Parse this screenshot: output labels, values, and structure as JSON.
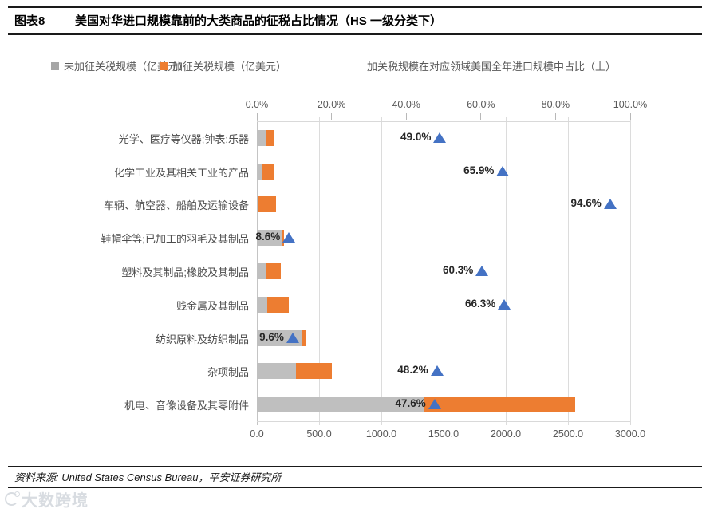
{
  "header": {
    "tag": "图表8",
    "title": "美国对华进口规模靠前的大类商品的征税占比情况（HS 一级分类下）"
  },
  "legend": {
    "untaxed_label": "未加征关税规模（亿美元）",
    "taxed_label": "加征关税规模（亿美元）",
    "note": "加关税规模在对应领域美国全年进口规模中占比（上）"
  },
  "colors": {
    "untaxed": "#BFBFBF",
    "taxed": "#ED7D31",
    "marker": "#4472C4",
    "legend_gray": "#A6A6A6"
  },
  "chart_data": {
    "type": "bar",
    "orientation": "horizontal",
    "stacked": true,
    "grid": "vertical",
    "categories": [
      "光学、医疗等仪器;钟表;乐器",
      "化学工业及其相关工业的产品",
      "车辆、航空器、船舶及运输设备",
      "鞋帽伞等;已加工的羽毛及其制品",
      "塑料及其制品;橡胶及其制品",
      "贱金属及其制品",
      "纺织原料及纺织制品",
      "杂项制品",
      "机电、音像设备及其零附件"
    ],
    "series": [
      {
        "name": "未加征关税规模（亿美元）",
        "color": "#BFBFBF",
        "values": [
          70,
          48,
          8,
          200,
          77,
          86,
          357,
          312,
          1340
        ]
      },
      {
        "name": "加征关税规模（亿美元）",
        "color": "#ED7D31",
        "values": [
          67,
          93,
          143,
          19,
          117,
          169,
          38,
          290,
          1217
        ]
      }
    ],
    "marker_series": {
      "name": "加关税规模在对应领域美国全年进口规模中占比（上）",
      "axis": "top",
      "values": [
        49.0,
        65.9,
        94.6,
        8.6,
        60.3,
        66.3,
        9.6,
        48.2,
        47.6
      ],
      "labels": [
        "49.0%",
        "65.9%",
        "94.6%",
        "8.6%",
        "60.3%",
        "66.3%",
        "9.6%",
        "48.2%",
        "47.6%"
      ]
    },
    "x_axis_bottom": {
      "range": [
        0,
        3000
      ],
      "ticks": [
        "0.0",
        "500.0",
        "1000.0",
        "1500.0",
        "2000.0",
        "2500.0",
        "3000.0"
      ]
    },
    "x_axis_top": {
      "range": [
        0,
        100
      ],
      "ticks": [
        "0.0%",
        "20.0%",
        "40.0%",
        "60.0%",
        "80.0%",
        "100.0%"
      ]
    }
  },
  "footer": {
    "source": "资料来源: United States Census Bureau，平安证券研究所"
  },
  "watermark": {
    "text": "大数跨境"
  }
}
